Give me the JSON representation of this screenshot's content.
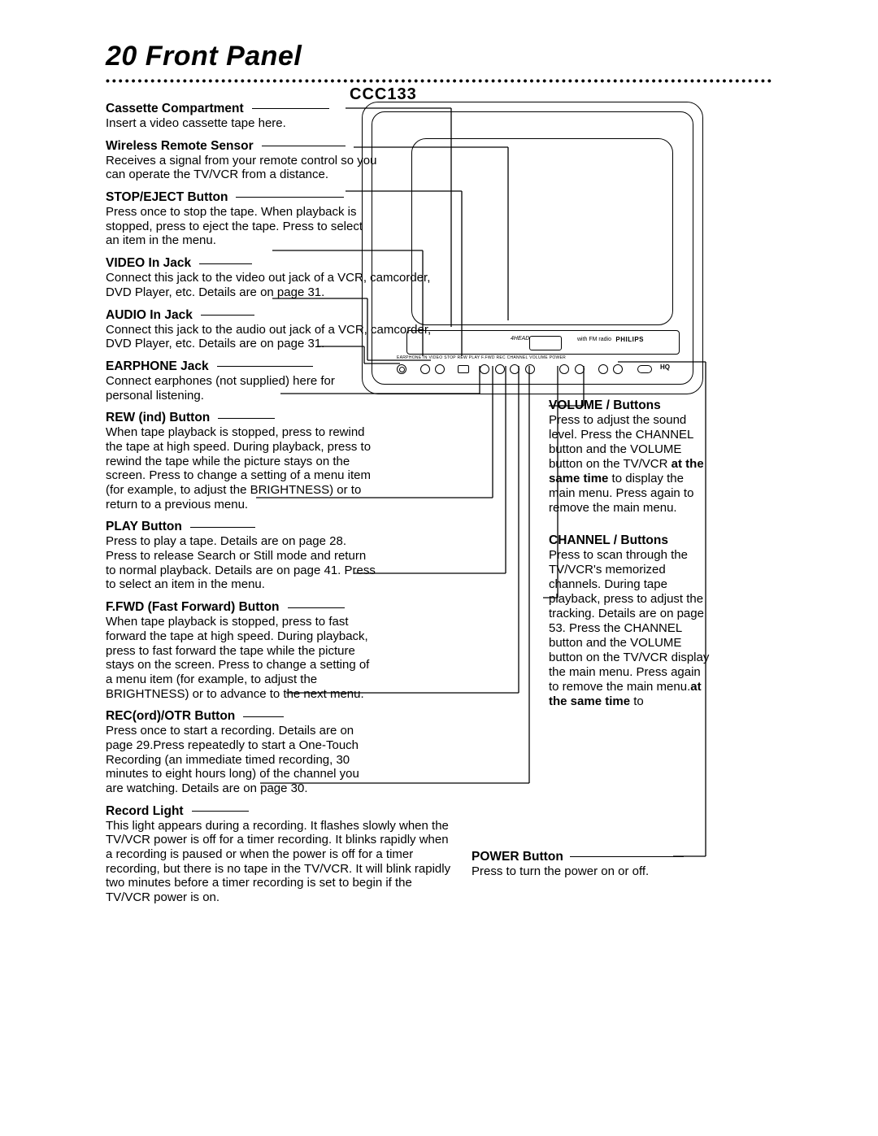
{
  "page": {
    "number": "20",
    "title": "Front Panel",
    "model": "CCC133"
  },
  "left": [
    {
      "id": "cassette",
      "heading": "Cassette Compartment",
      "ruleWidth": 95,
      "body": "Insert a video cassette tape here."
    },
    {
      "id": "sensor",
      "heading": "Wireless Remote Sensor",
      "ruleWidth": 103,
      "body": "Receives a signal from your remote control so you can operate the TV/VCR from a distance."
    },
    {
      "id": "stop",
      "heading": "STOP/EJECT Button",
      "ruleWidth": 133,
      "body": "Press once to stop the tape. When playback is stopped, press to eject the tape. Press to select an item in the menu."
    },
    {
      "id": "video",
      "heading": "VIDEO In Jack",
      "ruleWidth": 65,
      "wide": true,
      "body": "Connect this jack to the video out jack of a VCR, camcorder, DVD Player, etc. Details are on page 31."
    },
    {
      "id": "audio",
      "heading": "AUDIO In Jack",
      "ruleWidth": 66,
      "wide": true,
      "body": "Connect this jack to the audio out jack of a VCR, camcorder, DVD Player, etc. Details are on page 31."
    },
    {
      "id": "earphone",
      "heading": "EARPHONE Jack",
      "ruleWidth": 118,
      "body": "Connect earphones (not supplied) here for personal listening."
    },
    {
      "id": "rew",
      "heading": "REW (ind) Button",
      "ruleWidth": 70,
      "body": "When tape playback is stopped, press to rewind the tape at high speed.  During playback, press to rewind the tape while the picture stays on the screen. Press to change a setting of a menu item (for example, to adjust the BRIGHTNESS) or to return to a previous menu."
    },
    {
      "id": "play",
      "heading": "PLAY Button",
      "ruleWidth": 80,
      "body": "Press to play a tape. Details are on page 28. Press to release Search or Still mode and return to normal playback. Details are on page 41. Press to select an item in the menu."
    },
    {
      "id": "ffwd",
      "heading": "F.FWD (Fast Forward)  Button",
      "ruleWidth": 70,
      "body": "When tape playback is stopped, press to fast forward the tape at high speed. During playback, press to fast forward the tape while the picture stays on the screen. Press to change a setting of a menu item (for example, to adjust the BRIGHTNESS) or to advance to the next menu."
    },
    {
      "id": "rec",
      "heading": "REC(ord)/OTR Button",
      "ruleWidth": 50,
      "body": "Press once to start a recording. Details are on page 29.Press repeatedly to start a One-Touch Recording (an immediate timed recording, 30 minutes to eight hours long) of the channel you are watching. Details are on page 30."
    },
    {
      "id": "reclight",
      "heading": "Record Light",
      "ruleWidth": 70,
      "wide": true,
      "body": "This light appears during a recording. It flashes slowly when the TV/VCR power is off for a timer recording. It blinks rapidly when a recording is paused or when the power is off for a timer recording, but there is no tape in the TV/VCR. It will blink rapidly two minutes before a timer recording is set to begin if the TV/VCR power is on."
    }
  ],
  "right": [
    {
      "id": "volume",
      "heading": "VOLUME    /   Buttons",
      "body_parts": [
        "Press to adjust the sound level.",
        "Press the CHANNEL     button and the VOLUME     button on the TV/VCR ",
        "display the main menu. Press again to remove the main menu."
      ],
      "bold_mid": "at the same time",
      "bold_tail": " to"
    },
    {
      "id": "channel",
      "heading": "CHANNEL    /   Buttons",
      "body_parts": [
        "Press to scan through the TV/VCR's memorized channels. During tape playback, press to adjust the tracking. Details are on page 53. Press the CHANNEL     button and the VOLUME     button on the TV/VCR ",
        "display the main menu. Press again to remove the main menu."
      ],
      "bold_mid": "at the same time",
      "bold_tail": " to"
    }
  ],
  "power": {
    "heading": "POWER Button",
    "body": "Press to turn the power on or off."
  },
  "tv": {
    "brand": "PHILIPS",
    "fm": "with FM radio",
    "fourhead": "4HEAD",
    "hq": "HQ",
    "row_labels": "EARPHONE   IN VIDEO  STOP   REW    PLAY    F.FWD   REC           CHANNEL    VOLUME   POWER"
  },
  "colors": {
    "text": "#000000",
    "background": "#ffffff"
  },
  "fontsizes": {
    "title": 34,
    "model": 20,
    "heading": 15.5,
    "body": 15
  }
}
